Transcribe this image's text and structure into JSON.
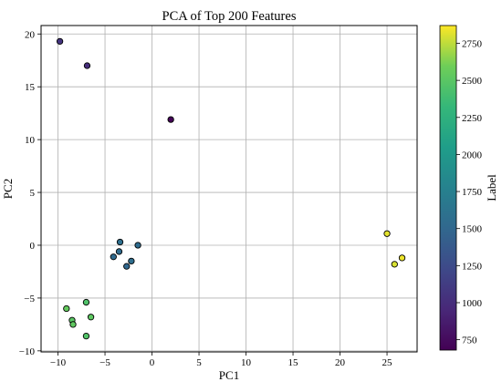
{
  "chart_data": {
    "type": "scatter",
    "title": "PCA of Top 200 Features",
    "xlabel": "PC1",
    "ylabel": "PC2",
    "xlim": [
      -11.8,
      28.2
    ],
    "ylim": [
      -10.1,
      20.8
    ],
    "xticks": [
      -10,
      -5,
      0,
      5,
      10,
      15,
      20,
      25
    ],
    "yticks": [
      -10,
      -5,
      0,
      5,
      10,
      15,
      20
    ],
    "grid": true,
    "colorbar": {
      "label": "Label",
      "range": [
        680,
        2870
      ],
      "ticks": [
        750,
        1000,
        1250,
        1500,
        1750,
        2000,
        2250,
        2500,
        2750
      ],
      "colormap": "viridis"
    },
    "points": [
      {
        "x": -9.8,
        "y": 19.3,
        "label": 1050
      },
      {
        "x": -6.9,
        "y": 17.0,
        "label": 1000
      },
      {
        "x": 2.0,
        "y": 11.9,
        "label": 700
      },
      {
        "x": -3.4,
        "y": 0.3,
        "label": 1580
      },
      {
        "x": -1.5,
        "y": 0.0,
        "label": 1540
      },
      {
        "x": -3.5,
        "y": -0.6,
        "label": 1530
      },
      {
        "x": -4.1,
        "y": -1.1,
        "label": 1520
      },
      {
        "x": -2.2,
        "y": -1.5,
        "label": 1560
      },
      {
        "x": -2.7,
        "y": -2.0,
        "label": 1500
      },
      {
        "x": 25.0,
        "y": 1.1,
        "label": 2820
      },
      {
        "x": 26.6,
        "y": -1.2,
        "label": 2840
      },
      {
        "x": 25.8,
        "y": -1.8,
        "label": 2800
      },
      {
        "x": -7.0,
        "y": -5.4,
        "label": 2450
      },
      {
        "x": -9.1,
        "y": -6.0,
        "label": 2550
      },
      {
        "x": -6.5,
        "y": -6.8,
        "label": 2520
      },
      {
        "x": -8.5,
        "y": -7.1,
        "label": 2500
      },
      {
        "x": -8.4,
        "y": -7.5,
        "label": 2530
      },
      {
        "x": -7.0,
        "y": -8.6,
        "label": 2460
      }
    ]
  }
}
